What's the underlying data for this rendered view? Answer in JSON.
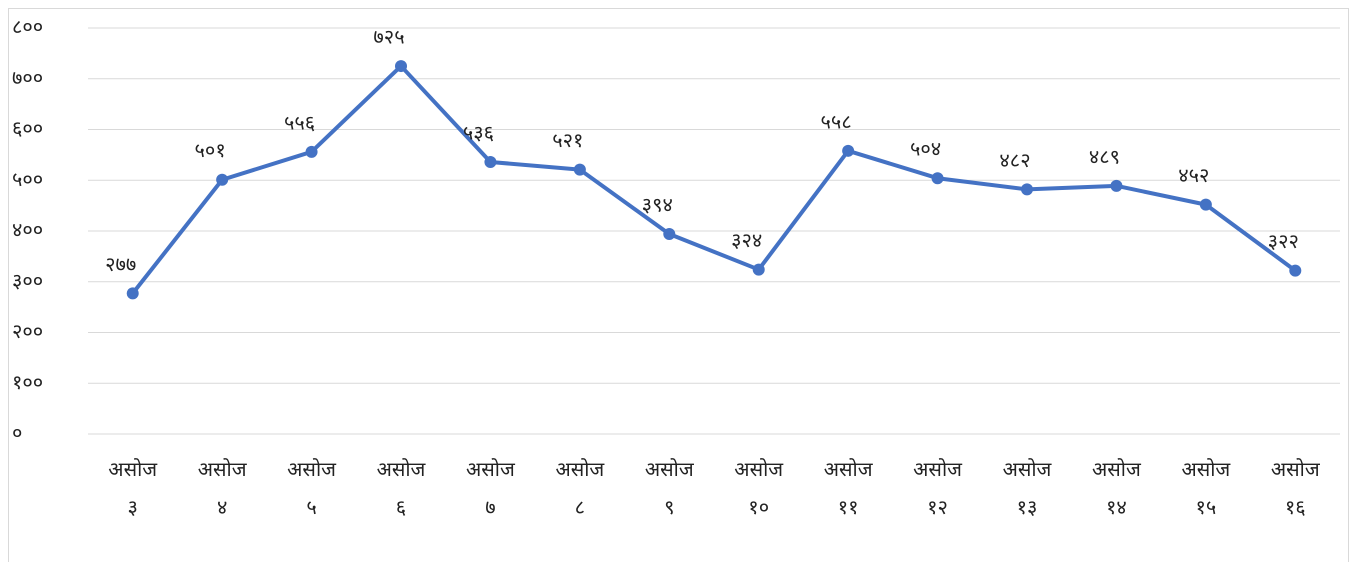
{
  "chart_data": {
    "type": "line",
    "categories": [
      "असोज ३",
      "असोज ४",
      "असोज ५",
      "असोज ६",
      "असोज ७",
      "असोज ८",
      "असोज ९",
      "असोज १०",
      "असोज ११",
      "असोज १२",
      "असोज १३",
      "असोज १४",
      "असोज १५",
      "असोज १६"
    ],
    "series": [
      {
        "color": "#4472c4",
        "values": [
          277,
          501,
          556,
          725,
          536,
          521,
          394,
          324,
          558,
          504,
          482,
          489,
          452,
          322
        ],
        "value_labels": [
          "२७७",
          "५०१",
          "५५६",
          "७२५",
          "५३६",
          "५२१",
          "३९४",
          "३२४",
          "५५८",
          "५०४",
          "४८२",
          "४८९",
          "४५२",
          "३२२"
        ]
      }
    ],
    "ylim": [
      0,
      800
    ],
    "yticks": [
      {
        "value": 0,
        "label": "०"
      },
      {
        "value": 100,
        "label": "१००"
      },
      {
        "value": 200,
        "label": "२००"
      },
      {
        "value": 300,
        "label": "३००"
      },
      {
        "value": 400,
        "label": "४००"
      },
      {
        "value": 500,
        "label": "५००"
      },
      {
        "value": 600,
        "label": "६००"
      },
      {
        "value": 700,
        "label": "७००"
      },
      {
        "value": 800,
        "label": "८००"
      }
    ],
    "grid": true
  }
}
